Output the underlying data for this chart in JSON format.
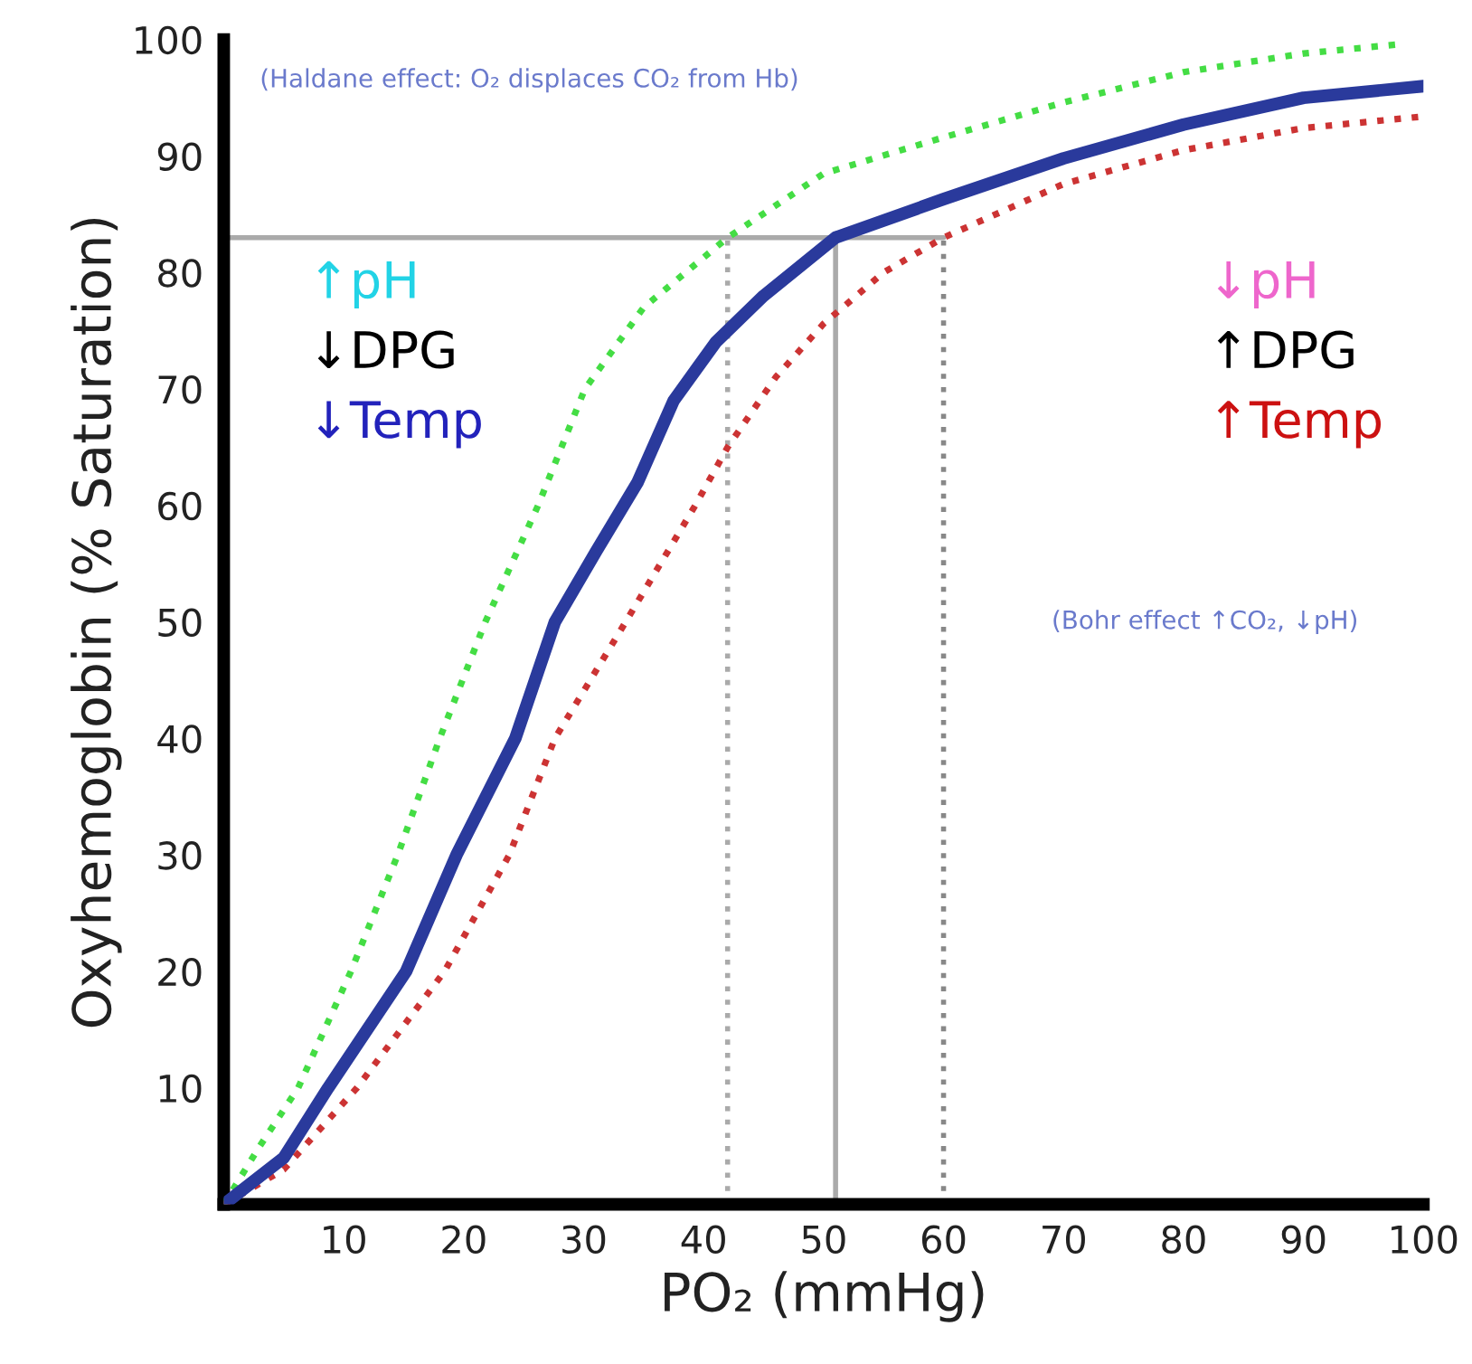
{
  "chart_data": {
    "type": "line",
    "xlabel": "PO₂ (mmHg)",
    "ylabel": "Oxyhemoglobin (% Saturation)",
    "xlim": [
      0,
      100
    ],
    "ylim": [
      0,
      100
    ],
    "xticks": [
      10,
      20,
      30,
      40,
      50,
      60,
      70,
      80,
      90,
      100
    ],
    "yticks": [
      10,
      20,
      30,
      40,
      50,
      60,
      70,
      80,
      90,
      100
    ],
    "grid": false,
    "legend": false,
    "marker": "none",
    "series": [
      {
        "color": "#44dd44",
        "line_style": "dotted",
        "x": [
          0,
          3,
          6.2,
          10.6,
          14.5,
          18,
          21.8,
          26.2,
          30.1,
          35,
          42,
          50,
          60,
          70,
          80,
          90,
          98
        ],
        "values": [
          0,
          5,
          10,
          20,
          30,
          40,
          50,
          60,
          70,
          77,
          83,
          88.5,
          91.6,
          94.6,
          97.2,
          98.8,
          99.6
        ]
      },
      {
        "color": "#cc3333",
        "line_style": "dotted",
        "x": [
          0,
          5,
          11.1,
          18.4,
          23.8,
          27.6,
          33.5,
          39.3,
          42,
          46,
          50,
          55,
          60,
          70,
          80,
          90,
          100
        ],
        "values": [
          0,
          3,
          10,
          20,
          30,
          40,
          50,
          60,
          65,
          71,
          75.6,
          80,
          83,
          87.6,
          90.5,
          92.4,
          93.4
        ]
      },
      {
        "color": "#2a3a9c",
        "line_style": "solid",
        "x": [
          0,
          5,
          8.7,
          15.2,
          19.4,
          24.3,
          27.6,
          31,
          34.5,
          37.5,
          41,
          45,
          51,
          60,
          70,
          80,
          90,
          100
        ],
        "values": [
          0,
          4,
          10,
          20,
          30,
          40,
          50,
          56,
          62,
          69,
          74,
          78,
          83,
          86.3,
          89.8,
          92.7,
          95,
          96
        ]
      }
    ],
    "ref_lines": [
      {
        "axis": "y",
        "value": 83,
        "color": "#aaaaaa",
        "line_style": "solid"
      },
      {
        "axis": "x",
        "value": 42,
        "color": "#aaaaaa",
        "line_style": "dotted"
      },
      {
        "axis": "x",
        "value": 51,
        "color": "#aaaaaa",
        "line_style": "solid"
      },
      {
        "axis": "x",
        "value": 60,
        "color": "#888888",
        "line_style": "dotted"
      }
    ],
    "annotations": [
      "(Haldane effect: O₂ displaces CO₂ from Hb)",
      "↑pH",
      "↓DPG",
      "↓Temp",
      "↓pH",
      "↑DPG",
      "↑Temp",
      "(Bohr effect ↑CO₂, ↓pH)"
    ]
  }
}
